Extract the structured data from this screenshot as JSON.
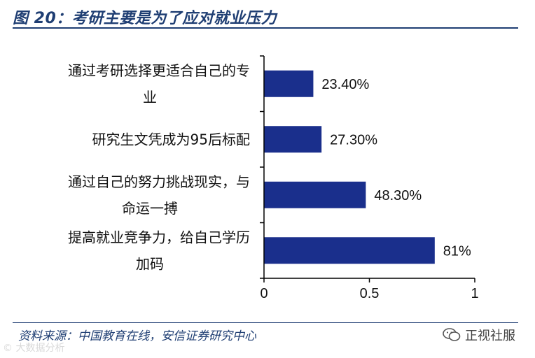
{
  "figure": {
    "title": "图 20：考研主要是为了应对就业压力",
    "source": "资料来源：中国教育在线，安信证券研究中心"
  },
  "watermarks": {
    "left": "大数据分析",
    "right": "正视社服"
  },
  "colors": {
    "bar": "#1a2f8c",
    "title": "#1f3e73",
    "axis": "#000000"
  },
  "chart_data": {
    "type": "bar",
    "orientation": "horizontal",
    "categories": [
      [
        "通过考研选择更适合自己的专",
        "业"
      ],
      [
        "研究生文凭成为95后标配"
      ],
      [
        "通过自己的努力挑战现实，与",
        "命运一搏"
      ],
      [
        "提高就业竞争力，给自己学历",
        "加码"
      ]
    ],
    "values": [
      0.234,
      0.273,
      0.483,
      0.81
    ],
    "value_labels": [
      "23.40%",
      "27.30%",
      "48.30%",
      "81%"
    ],
    "xlim": [
      0,
      1
    ],
    "xticks": [
      0,
      0.5,
      1
    ],
    "xtick_labels": [
      "0",
      "0.5",
      "1"
    ],
    "grid": false,
    "legend": "none"
  }
}
